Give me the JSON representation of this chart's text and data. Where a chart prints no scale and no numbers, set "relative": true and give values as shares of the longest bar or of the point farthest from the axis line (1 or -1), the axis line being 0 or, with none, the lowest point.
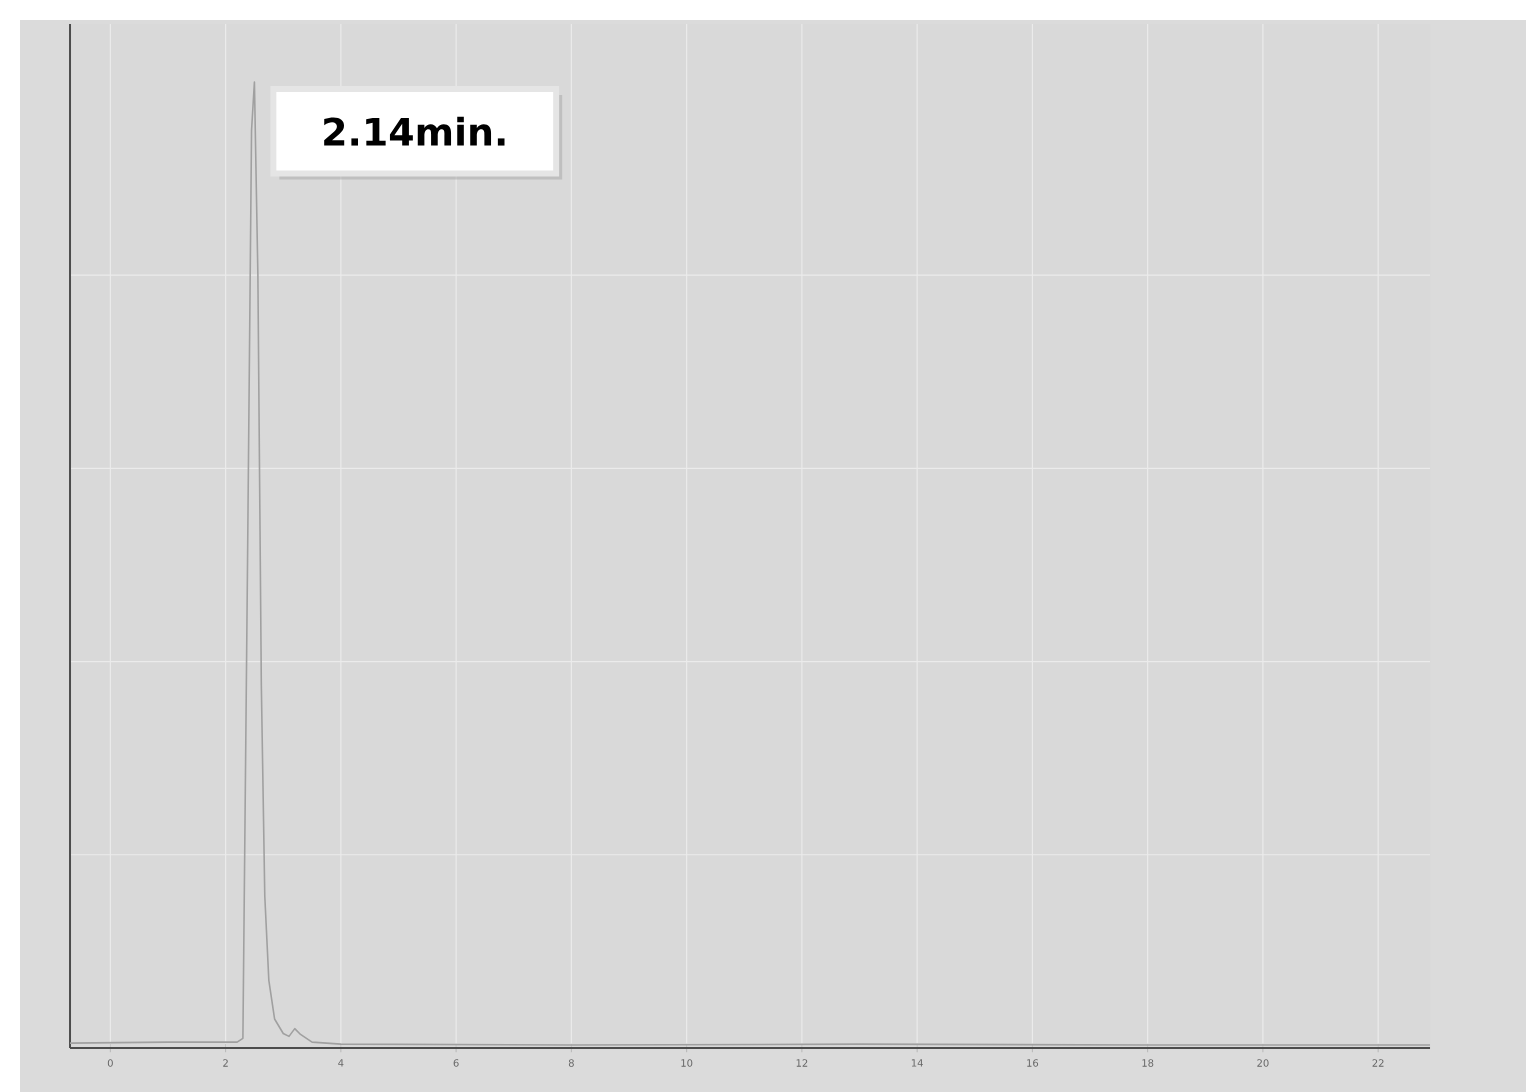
{
  "chart_data": {
    "type": "line",
    "relative": true,
    "x": [
      -0.7,
      1,
      2.2,
      2.3,
      2.38,
      2.45,
      2.5,
      2.56,
      2.62,
      2.68,
      2.75,
      2.85,
      3.0,
      3.1,
      3.2,
      3.3,
      3.5,
      4,
      8,
      13,
      18,
      22.9
    ],
    "series": [
      {
        "color": "#a0a0a0",
        "values": [
          0.005,
          0.006,
          0.006,
          0.01,
          0.5,
          0.95,
          1,
          0.8,
          0.375,
          0.157,
          0.07,
          0.03,
          0.015,
          0.012,
          0.02,
          0.014,
          0.006,
          0.004,
          0.003,
          0.004,
          0.003,
          0.003
        ]
      }
    ],
    "xlim": [
      -0.7,
      22.9
    ],
    "xticks": [
      0,
      2,
      4,
      6,
      8,
      10,
      12,
      14,
      16,
      18,
      20,
      22
    ],
    "grid": true,
    "marker": "none",
    "line_style": "solid",
    "annotations": [
      {
        "text": "2.14min.",
        "x": 2.5,
        "y": 1
      }
    ]
  }
}
